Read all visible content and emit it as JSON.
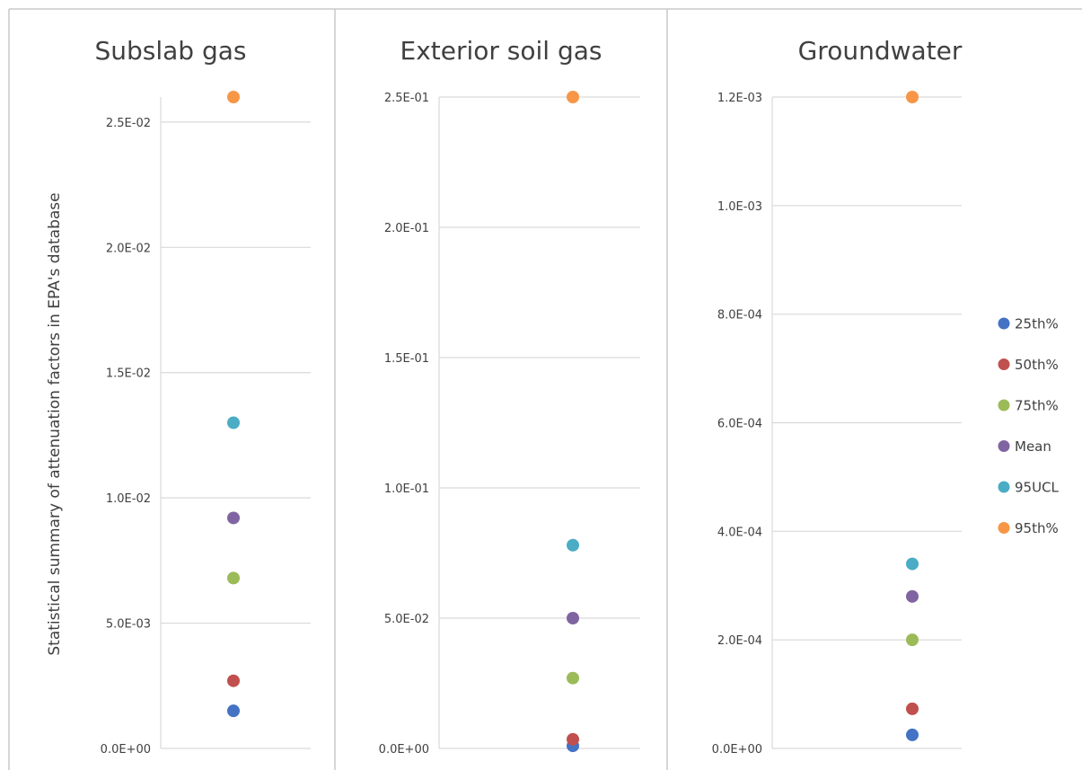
{
  "chart_data": [
    {
      "type": "scatter",
      "title": "Subslab gas",
      "ylabel": "Statistical summary of attenuation factors in EPA's database",
      "ylim": [
        0,
        0.026
      ],
      "ticks": [
        0,
        0.005,
        0.01,
        0.015,
        0.02,
        0.025
      ],
      "tick_labels": [
        "0.0E+00",
        "5.0E-03",
        "1.0E-02",
        "1.5E-02",
        "2.0E-02",
        "2.5E-02"
      ],
      "grid": true,
      "series": [
        {
          "name": "25th%",
          "values": [
            0.0015
          ]
        },
        {
          "name": "50th%",
          "values": [
            0.0027
          ]
        },
        {
          "name": "75th%",
          "values": [
            0.0068
          ]
        },
        {
          "name": "Mean",
          "values": [
            0.0092
          ]
        },
        {
          "name": "95UCL",
          "values": [
            0.013
          ]
        },
        {
          "name": "95th%",
          "values": [
            0.026
          ]
        }
      ]
    },
    {
      "type": "scatter",
      "title": "Exterior soil gas",
      "ylim": [
        0,
        0.25
      ],
      "ticks": [
        0,
        0.05,
        0.1,
        0.15,
        0.2,
        0.25
      ],
      "tick_labels": [
        "0.0E+00",
        "5.0E-02",
        "1.0E-01",
        "1.5E-01",
        "2.0E-01",
        "2.5E-01"
      ],
      "grid": true,
      "series": [
        {
          "name": "25th%",
          "values": [
            0.001
          ]
        },
        {
          "name": "50th%",
          "values": [
            0.0035
          ]
        },
        {
          "name": "75th%",
          "values": [
            0.027
          ]
        },
        {
          "name": "Mean",
          "values": [
            0.05
          ]
        },
        {
          "name": "95UCL",
          "values": [
            0.078
          ]
        },
        {
          "name": "95th%",
          "values": [
            0.25
          ]
        }
      ]
    },
    {
      "type": "scatter",
      "title": "Groundwater",
      "ylim": [
        0,
        0.0012
      ],
      "ticks": [
        0,
        0.0002,
        0.0004,
        0.0006,
        0.0008,
        0.001,
        0.0012
      ],
      "tick_labels": [
        "0.0E+00",
        "2.0E-04",
        "4.0E-04",
        "6.0E-04",
        "8.0E-04",
        "1.0E-03",
        "1.2E-03"
      ],
      "grid": true,
      "series": [
        {
          "name": "25th%",
          "values": [
            2.5e-05
          ]
        },
        {
          "name": "50th%",
          "values": [
            7.3e-05
          ]
        },
        {
          "name": "75th%",
          "values": [
            0.0002
          ]
        },
        {
          "name": "Mean",
          "values": [
            0.00028
          ]
        },
        {
          "name": "95UCL",
          "values": [
            0.00034
          ]
        },
        {
          "name": "95th%",
          "values": [
            0.0012
          ]
        }
      ]
    }
  ],
  "legend": {
    "placement": "right",
    "items": [
      {
        "name": "25th%",
        "color": "#4472c4"
      },
      {
        "name": "50th%",
        "color": "#c0504d"
      },
      {
        "name": "75th%",
        "color": "#9bbb59"
      },
      {
        "name": "Mean",
        "color": "#8064a2"
      },
      {
        "name": "95UCL",
        "color": "#4bacc6"
      },
      {
        "name": "95th%",
        "color": "#f79646"
      }
    ]
  }
}
